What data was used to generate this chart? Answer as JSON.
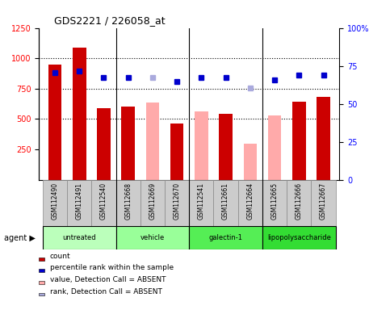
{
  "title": "GDS2221 / 226058_at",
  "samples": [
    "GSM112490",
    "GSM112491",
    "GSM112540",
    "GSM112668",
    "GSM112669",
    "GSM112670",
    "GSM112541",
    "GSM112661",
    "GSM112664",
    "GSM112665",
    "GSM112666",
    "GSM112667"
  ],
  "bar_values": [
    950,
    1090,
    590,
    600,
    null,
    460,
    null,
    540,
    null,
    null,
    640,
    680
  ],
  "bar_values_absent": [
    null,
    null,
    null,
    null,
    635,
    null,
    565,
    null,
    300,
    530,
    null,
    null
  ],
  "rank_values": [
    880,
    895,
    845,
    845,
    845,
    810,
    840,
    840,
    755,
    820,
    865,
    860
  ],
  "rank_absent_vals": [
    null,
    null,
    null,
    null,
    845,
    null,
    null,
    null,
    755,
    null,
    null,
    null
  ],
  "agents": [
    {
      "label": "untreated",
      "start": 0,
      "end": 3,
      "color": "#bbffbb"
    },
    {
      "label": "vehicle",
      "start": 3,
      "end": 6,
      "color": "#99ff99"
    },
    {
      "label": "galectin-1",
      "start": 6,
      "end": 9,
      "color": "#55ee55"
    },
    {
      "label": "lipopolysaccharide",
      "start": 9,
      "end": 12,
      "color": "#33dd33"
    }
  ],
  "ylim_left": [
    0,
    1250
  ],
  "ylim_right": [
    0,
    100
  ],
  "yticks_left": [
    250,
    500,
    750,
    1000,
    1250
  ],
  "yticks_right": [
    0,
    25,
    50,
    75,
    100
  ],
  "bar_color_present": "#cc0000",
  "bar_color_absent": "#ffaaaa",
  "rank_color_present": "#0000cc",
  "rank_color_absent": "#aaaadd",
  "gridline_color": "#000000",
  "tick_label_bg": "#cccccc",
  "tick_label_border": "#888888"
}
